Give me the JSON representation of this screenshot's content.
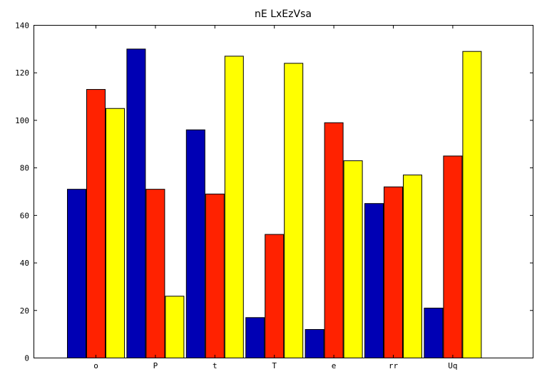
{
  "chart_data": {
    "type": "bar",
    "title": "nE LxEzVsa",
    "xlabel": "",
    "ylabel": "",
    "categories": [
      "o",
      "P",
      "t",
      "T",
      "e",
      "rr",
      "Uq"
    ],
    "series": [
      {
        "color": "#0000b4",
        "values": [
          71,
          130,
          96,
          17,
          12,
          65,
          21
        ]
      },
      {
        "color": "#ff2200",
        "values": [
          113,
          71,
          69,
          52,
          99,
          72,
          85
        ]
      },
      {
        "color": "#ffff00",
        "values": [
          105,
          26,
          127,
          124,
          83,
          77,
          129
        ]
      }
    ],
    "ylim": [
      0,
      140
    ],
    "yticks": [
      0,
      20,
      40,
      60,
      80,
      100,
      120,
      140
    ],
    "grid": false,
    "legend": "none"
  }
}
